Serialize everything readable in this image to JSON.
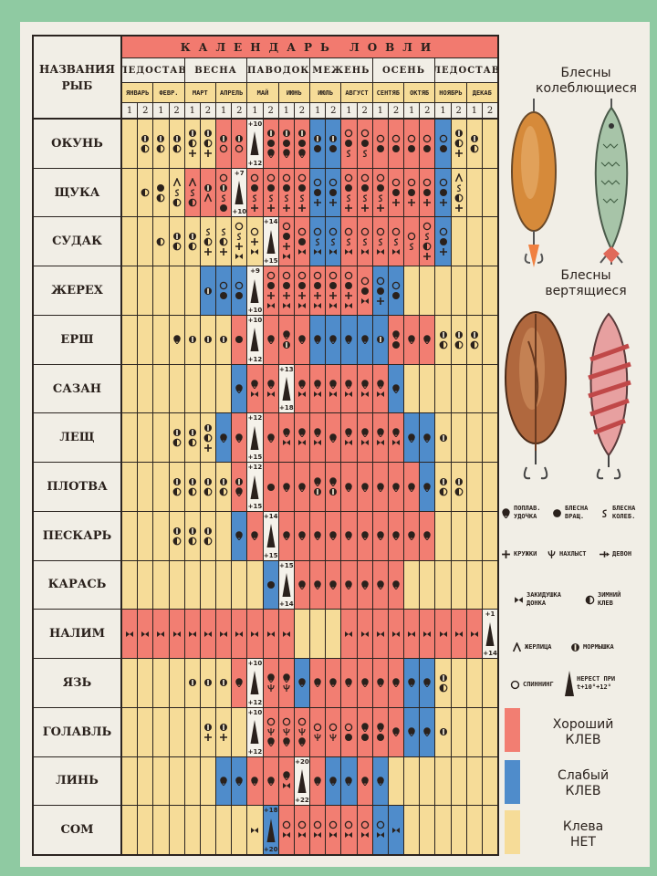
{
  "header": {
    "names_label_1": "НАЗВАНИЯ",
    "names_label_2": "РЫБ",
    "title": "КАЛЕНДАРЬ ЛОВЛИ",
    "seasons": [
      "ЛЕДОСТАВ",
      "ВЕСНА",
      "ПАВОДОК",
      "МЕЖЕНЬ",
      "ОСЕНЬ",
      "ЛЕДОСТАВ"
    ],
    "months": [
      "ЯНВАРЬ",
      "ФЕВР.",
      "МАРТ",
      "АПРЕЛЬ",
      "МАЙ",
      "ИЮНЬ",
      "ИЮЛЬ",
      "АВГУСТ",
      "СЕНТЯБ",
      "ОКТЯБ",
      "НОЯБРЬ",
      "ДЕКАБ"
    ],
    "halves": [
      "1",
      "2"
    ]
  },
  "colors": {
    "good": "#f27e72",
    "weak": "#4f8ccb",
    "none": "#f6dc98",
    "spawn": "#f5f2ea"
  },
  "fish": [
    {
      "name": "ОКУНЬ",
      "bite": "YYYYYYRRWRRRBBRRRRRRBYYY",
      "spawn": [
        "+10",
        "+12"
      ],
      "sym": [
        "",
        "mz",
        "mz",
        "mz",
        "mzp",
        "mzp",
        "ms",
        "ms",
        "W",
        "mvf",
        "mvf",
        "mvf",
        "mv",
        "mv",
        "svk",
        "svk",
        "sv",
        "sv",
        "sv",
        "sv",
        "sv",
        "mzp",
        "mz",
        ""
      ]
    },
    {
      "name": "ЩУКА",
      "bite": "YYYYRRRWRRRRBBRRRRRRBYYY",
      "spawn": [
        "+7",
        "+10"
      ],
      "sym": [
        "",
        "z",
        "vz",
        "akz",
        "akz",
        "ma",
        "smkv",
        "W",
        "svkp",
        "svkp",
        "svkp",
        "svkp",
        "svp",
        "svp",
        "svkp",
        "svkp",
        "svkp",
        "svp",
        "svp",
        "svp",
        "svp",
        "akzp",
        "",
        ""
      ]
    },
    {
      "name": "СУДАК",
      "bite": "YYYYYYYYYWRRBBRRRRRRBYYY",
      "spawn": [
        "+14",
        "+15"
      ],
      "sym": [
        "",
        "",
        "z",
        "mz",
        "mz",
        "kzp",
        "kzp",
        "skpb",
        "spb",
        "W",
        "svpb",
        "svb",
        "skb",
        "skb",
        "skb",
        "skb",
        "skb",
        "skb",
        "sk",
        "skzp",
        "svp",
        "",
        "",
        ""
      ]
    },
    {
      "name": "ЖЕРЕХ",
      "bite": "YYYYYBBBWRRRRRRRBBYYYYYY",
      "spawn": [
        "+9",
        "+10"
      ],
      "sym": [
        "",
        "",
        "",
        "",
        "",
        "m",
        "sv",
        "sv",
        "W",
        "svpb",
        "svpb",
        "svpb",
        "svpb",
        "svpb",
        "svpb",
        "svb",
        "svp",
        "sv",
        "",
        "",
        "",
        "",
        "",
        ""
      ]
    },
    {
      "name": "ЕРШ",
      "bite": "YYYYYYYRWRRRBBBBBRRRYYYY",
      "spawn": [
        "+10",
        "+12"
      ],
      "sym": [
        "",
        "",
        "",
        "f",
        "m",
        "m",
        "m",
        "v",
        "W",
        "f",
        "fm",
        "f",
        "f",
        "f",
        "f",
        "f",
        "m",
        "fv",
        "f",
        "f",
        "mz",
        "mz",
        "mz",
        ""
      ]
    },
    {
      "name": "САЗАН",
      "bite": "YYYYYYYBRRWRRRRRRBYYYYYY",
      "spawn": [
        "+13",
        "+18"
      ],
      "sym": [
        "",
        "",
        "",
        "",
        "",
        "",
        "",
        "f",
        "fb",
        "fb",
        "W",
        "fb",
        "fb",
        "fb",
        "fb",
        "fb",
        "fb",
        "f",
        "",
        "",
        "",
        "",
        "",
        ""
      ]
    },
    {
      "name": "ЛЕЩ",
      "bite": "YYYYYYBRWRRRRRRRRRBBYYYY",
      "spawn": [
        "+12",
        "+15"
      ],
      "sym": [
        "",
        "",
        "",
        "mz",
        "mz",
        "mzp",
        "f",
        "f",
        "W",
        "f",
        "fb",
        "fb",
        "fb",
        "f",
        "fb",
        "fb",
        "fb",
        "fb",
        "f",
        "f",
        "m",
        "",
        "",
        ""
      ]
    },
    {
      "name": "ПЛОТВА",
      "bite": "YYYYYYYRWRRRRRRRRRRBYYYY",
      "spawn": [
        "+12",
        "+15"
      ],
      "sym": [
        "",
        "",
        "",
        "mz",
        "mz",
        "mz",
        "mz",
        "mf",
        "W",
        "v",
        "f",
        "f",
        "fm",
        "fm",
        "f",
        "f",
        "f",
        "f",
        "f",
        "f",
        "mz",
        "mz",
        "",
        ""
      ]
    },
    {
      "name": "ПЕСКАРЬ",
      "bite": "YYYYYYYBRWRRRRRRRRRRYYYY",
      "spawn": [
        "+14",
        "+15"
      ],
      "sym": [
        "",
        "",
        "",
        "mz",
        "mz",
        "mz",
        "",
        "f",
        "f",
        "W",
        "f",
        "f",
        "f",
        "f",
        "f",
        "f",
        "f",
        "f",
        "f",
        "f",
        "",
        "",
        "",
        ""
      ]
    },
    {
      "name": "КАРАСЬ",
      "bite": "YYYYYYYYYBWRRRRRRRYYYYYY",
      "spawn": [
        "+15",
        "+14"
      ],
      "sym": [
        "",
        "",
        "",
        "",
        "",
        "",
        "",
        "",
        "",
        "v",
        "W",
        "f",
        "f",
        "f",
        "f",
        "f",
        "f",
        "f",
        "",
        "",
        "",
        "",
        "",
        ""
      ]
    },
    {
      "name": "НАЛИМ",
      "bite": "RRRRRRRRRRRYYYRRRRRRRRRW",
      "spawn": [
        "+1",
        "+14"
      ],
      "sym": [
        "b",
        "b",
        "b",
        "b",
        "b",
        "b",
        "b",
        "b",
        "b",
        "b",
        "b",
        "",
        "",
        "",
        "b",
        "b",
        "b",
        "b",
        "b",
        "b",
        "b",
        "b",
        "b",
        "W"
      ]
    },
    {
      "name": "ЯЗЬ",
      "bite": "YYYYYYYRWRRBRRRRRRBBYYYY",
      "spawn": [
        "+10",
        "+12"
      ],
      "sym": [
        "",
        "",
        "",
        "",
        "m",
        "m",
        "m",
        "f",
        "W",
        "fn",
        "fn",
        "f",
        "f",
        "f",
        "f",
        "f",
        "f",
        "f",
        "f",
        "f",
        "mz",
        "",
        "",
        ""
      ]
    },
    {
      "name": "ГОЛАВЛЬ",
      "bite": "YYYYYYYYWRRRRRRRRRBBYYYY",
      "spawn": [
        "+10",
        "+12"
      ],
      "sym": [
        "",
        "",
        "",
        "",
        "",
        "mp",
        "mp",
        "",
        "W",
        "snf",
        "snf",
        "snf",
        "sn",
        "sn",
        "sv",
        "fv",
        "fv",
        "f",
        "f",
        "f",
        "m",
        "",
        "",
        ""
      ]
    },
    {
      "name": "ЛИНЬ",
      "bite": "YYYYYYBBRRRWRBBRBYYYYYYY",
      "spawn": [
        "+20",
        "+22"
      ],
      "sym": [
        "",
        "",
        "",
        "",
        "",
        "",
        "f",
        "f",
        "f",
        "f",
        "fb",
        "W",
        "f",
        "f",
        "f",
        "f",
        "f",
        "",
        "",
        "",
        "",
        "",
        "",
        ""
      ]
    },
    {
      "name": "СОМ",
      "bite": "YYYYYYYYYBRRRRRRBBYYYYYY",
      "spawn": [
        "+18",
        "+20"
      ],
      "sym": [
        "",
        "",
        "",
        "",
        "",
        "",
        "",
        "",
        "b",
        "W",
        "sb",
        "sb",
        "sb",
        "sb",
        "sb",
        "sb",
        "sb",
        "b",
        "",
        "",
        "",
        "",
        "",
        ""
      ]
    }
  ],
  "side": {
    "oscillating_title_1": "Блесны",
    "oscillating_title_2": "колеблющиеся",
    "rotating_title_1": "Блесны",
    "rotating_title_2": "вертящиеся"
  },
  "legend": {
    "float_rod": [
      "ПОПЛАВ.",
      "УДОЧКА"
    ],
    "spinner_rot": [
      "БЛЕСНА",
      "ВРАЩ."
    ],
    "spinner_osc": [
      "БЛЕСНА",
      "КОЛЕБ."
    ],
    "mugs": "КРУЖКИ",
    "fly": "НАХЛЫСТ",
    "devon": "ДЕВОН",
    "bottom_line": [
      "ЗАКИДУШКА",
      "ДОНКА"
    ],
    "winter": [
      "ЗИМНИЙ",
      "КЛЕВ"
    ],
    "zherlitsa": "ЖЕРЛИЦА",
    "jig": "МОРМЫШКА",
    "spinning": "СПИННИНГ",
    "spawn": [
      "НЕРЕСТ ПРИ",
      "t+10°+12°"
    ],
    "good": [
      "Хороший",
      "КЛЕВ"
    ],
    "weak": [
      "Слабый",
      "КЛЕВ"
    ],
    "none": [
      "Клева",
      "НЕТ"
    ]
  }
}
